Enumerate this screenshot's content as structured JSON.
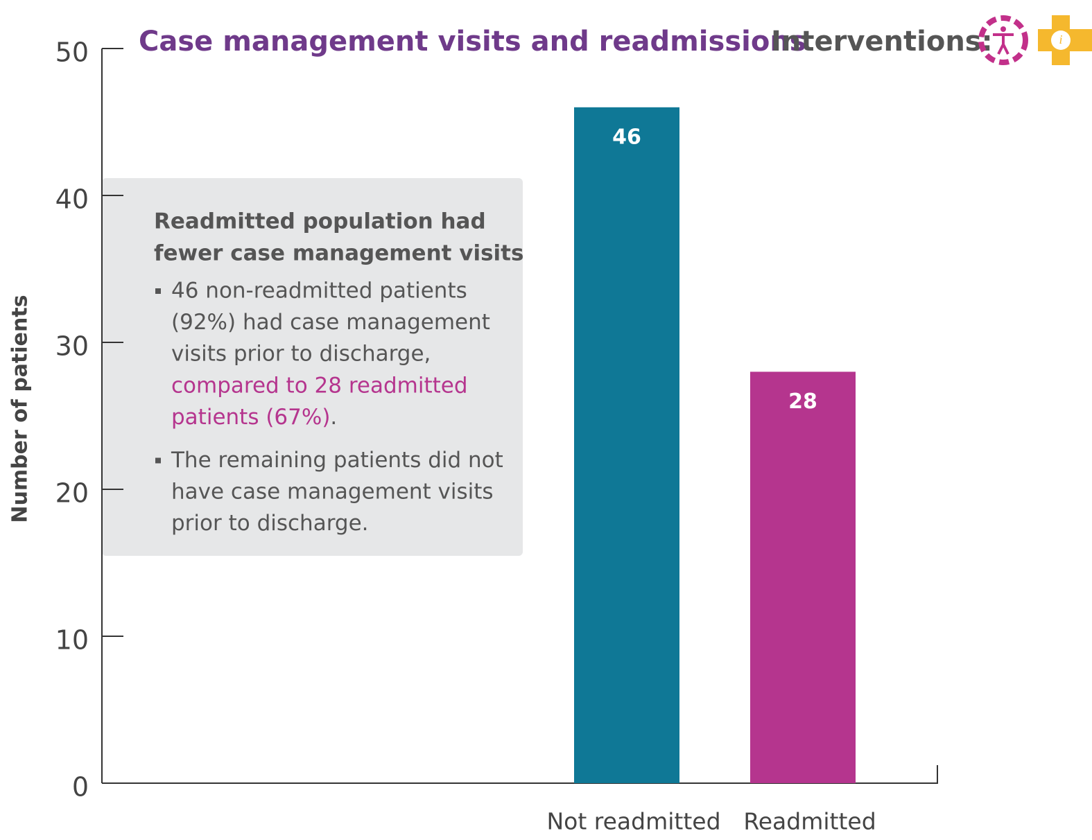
{
  "chart_data": {
    "type": "bar",
    "title": "Case management visits and readmissions",
    "interventions_label": "Interventions:",
    "ylabel": "Number of patients",
    "categories": [
      "Not readmitted",
      "Readmitted"
    ],
    "values": [
      46,
      28
    ],
    "colors": [
      "#0f7896",
      "#b5358e"
    ],
    "ylim": [
      0,
      50
    ],
    "yticks": [
      0,
      10,
      20,
      30,
      40,
      50
    ],
    "annotation": {
      "heading": [
        "Readmitted population had",
        "fewer case management visits"
      ],
      "bullets": [
        {
          "lines": [
            "46 non-readmitted patients",
            "(92%) had case management",
            "visits prior to discharge,"
          ],
          "highlight": [
            "compared to 28 readmitted",
            "patients (67%)"
          ],
          "tail": "."
        },
        {
          "lines": [
            "The remaining patients did not",
            "have case management visits",
            "prior to discharge."
          ]
        }
      ]
    }
  }
}
